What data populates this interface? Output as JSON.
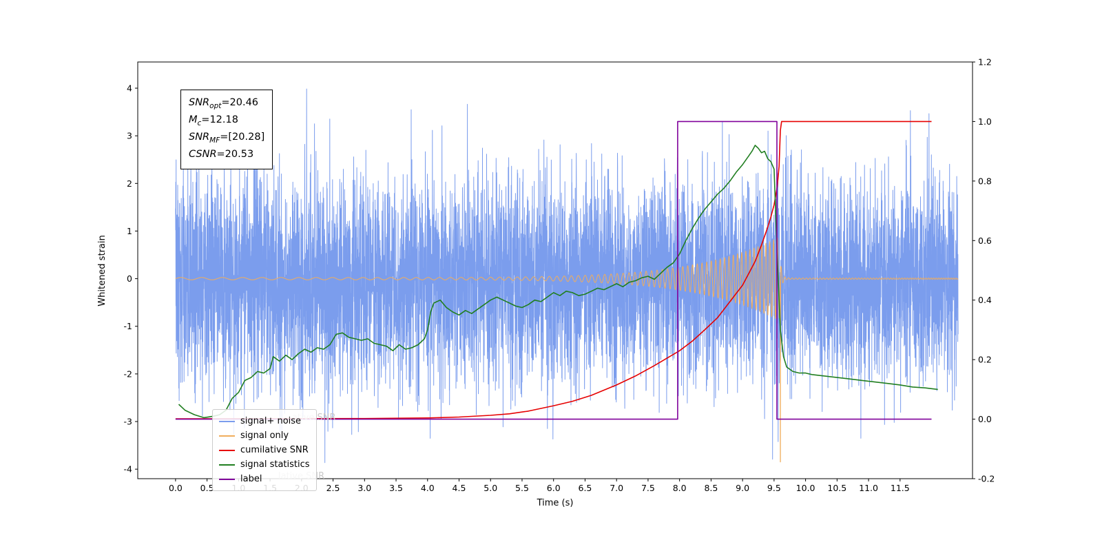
{
  "annotation": {
    "lines": [
      {
        "main": "SNR",
        "sub": "opt",
        "rest": "=20.46"
      },
      {
        "main": "M",
        "sub": "c",
        "rest": "=12.18"
      },
      {
        "main": "SNR",
        "sub": "MF",
        "rest": "=[20.28]"
      },
      {
        "main": "CSNR",
        "sub": "",
        "rest": "=20.53"
      }
    ]
  },
  "legend": {
    "items": [
      {
        "label": "signal+ noise",
        "color": "#7b9ded"
      },
      {
        "label": "signal only",
        "color": "#f0ad5c"
      },
      {
        "label": "cumilative SNR",
        "color": "#e60000"
      },
      {
        "label": "signal statistics",
        "color": "#207e20"
      },
      {
        "label": "label",
        "color": "#80009b"
      }
    ],
    "ghosts": [
      {
        "text": "ative SNR"
      },
      {
        "text": "lative SNR"
      }
    ]
  },
  "chart_data": {
    "type": "line",
    "title": "",
    "xlabel": "Time (s)",
    "ylabel_left": "Whitened strain",
    "ylabel_right": "",
    "xlim": [
      -0.6,
      12.65
    ],
    "ylim_left": [
      -4.2,
      4.55
    ],
    "ylim_right": [
      -0.2,
      1.2
    ],
    "grid": false,
    "legend_position": "lower left",
    "x_ticks": [
      0.0,
      0.5,
      1.0,
      1.5,
      2.0,
      2.5,
      3.0,
      3.5,
      4.0,
      4.5,
      5.0,
      5.5,
      6.0,
      6.5,
      7.0,
      7.5,
      8.0,
      8.5,
      9.0,
      9.5,
      10.0,
      10.5,
      11.0,
      11.5
    ],
    "y_ticks_left": [
      -4,
      -3,
      -2,
      -1,
      0,
      1,
      2,
      3,
      4
    ],
    "y_ticks_right": [
      -0.2,
      0.0,
      0.2,
      0.4,
      0.6,
      0.8,
      1.0,
      1.2
    ],
    "series": [
      {
        "name": "signal+ noise",
        "slug": "signal-plus-noise",
        "color": "#7b9ded",
        "axis": "left",
        "kind": "noise",
        "width": 1,
        "t_range": [
          0,
          12.42
        ],
        "noise": {
          "seed": 12,
          "n": 7200,
          "std": 1.05
        }
      },
      {
        "name": "signal only",
        "slug": "signal-only",
        "color": "#f0ad5c",
        "axis": "left",
        "kind": "chirp",
        "width": 1,
        "t_range": [
          0,
          12.42
        ],
        "chirp": {
          "t_merger": 9.58,
          "amp_floor": 0.025,
          "amp_peak": 0.85,
          "power": 7.5,
          "f0": 3.0,
          "cube": 0.05,
          "ring_decay": 40,
          "residual": 0.015,
          "spike_t": 9.6,
          "spike_amp": -3.85
        }
      },
      {
        "name": "cumilative SNR",
        "slug": "cumulative-snr",
        "color": "#e60000",
        "axis": "right",
        "kind": "points",
        "width": 1.6,
        "points": [
          [
            0,
            0.001
          ],
          [
            3,
            0.002
          ],
          [
            4,
            0.004
          ],
          [
            4.5,
            0.007
          ],
          [
            5,
            0.013
          ],
          [
            5.3,
            0.018
          ],
          [
            5.6,
            0.027
          ],
          [
            6,
            0.045
          ],
          [
            6.3,
            0.06
          ],
          [
            6.6,
            0.08
          ],
          [
            7,
            0.115
          ],
          [
            7.3,
            0.145
          ],
          [
            7.6,
            0.18
          ],
          [
            8,
            0.23
          ],
          [
            8.2,
            0.262
          ],
          [
            8.4,
            0.3
          ],
          [
            8.6,
            0.34
          ],
          [
            8.8,
            0.395
          ],
          [
            9,
            0.45
          ],
          [
            9.1,
            0.49
          ],
          [
            9.2,
            0.53
          ],
          [
            9.3,
            0.585
          ],
          [
            9.4,
            0.645
          ],
          [
            9.45,
            0.68
          ],
          [
            9.5,
            0.72
          ],
          [
            9.55,
            0.78
          ],
          [
            9.58,
            0.85
          ],
          [
            9.6,
            0.97
          ],
          [
            9.62,
            1.0
          ],
          [
            12.0,
            1.0
          ]
        ]
      },
      {
        "name": "signal statistics",
        "slug": "signal-statistics",
        "color": "#207e20",
        "axis": "right",
        "kind": "points",
        "width": 1.6,
        "points": [
          [
            0.05,
            0.05
          ],
          [
            0.15,
            0.03
          ],
          [
            0.3,
            0.015
          ],
          [
            0.45,
            0.005
          ],
          [
            0.6,
            0.01
          ],
          [
            0.7,
            0.015
          ],
          [
            0.8,
            0.03
          ],
          [
            0.9,
            0.07
          ],
          [
            1.0,
            0.09
          ],
          [
            1.1,
            0.13
          ],
          [
            1.2,
            0.14
          ],
          [
            1.3,
            0.16
          ],
          [
            1.4,
            0.155
          ],
          [
            1.5,
            0.17
          ],
          [
            1.55,
            0.21
          ],
          [
            1.65,
            0.195
          ],
          [
            1.75,
            0.215
          ],
          [
            1.85,
            0.2
          ],
          [
            1.95,
            0.22
          ],
          [
            2.05,
            0.235
          ],
          [
            2.15,
            0.225
          ],
          [
            2.25,
            0.24
          ],
          [
            2.35,
            0.235
          ],
          [
            2.45,
            0.25
          ],
          [
            2.55,
            0.285
          ],
          [
            2.65,
            0.29
          ],
          [
            2.75,
            0.275
          ],
          [
            2.85,
            0.27
          ],
          [
            2.95,
            0.265
          ],
          [
            3.05,
            0.27
          ],
          [
            3.15,
            0.255
          ],
          [
            3.25,
            0.25
          ],
          [
            3.35,
            0.245
          ],
          [
            3.45,
            0.23
          ],
          [
            3.55,
            0.25
          ],
          [
            3.65,
            0.235
          ],
          [
            3.75,
            0.24
          ],
          [
            3.85,
            0.25
          ],
          [
            3.95,
            0.27
          ],
          [
            4.0,
            0.3
          ],
          [
            4.05,
            0.36
          ],
          [
            4.1,
            0.39
          ],
          [
            4.2,
            0.4
          ],
          [
            4.3,
            0.375
          ],
          [
            4.4,
            0.36
          ],
          [
            4.5,
            0.35
          ],
          [
            4.6,
            0.365
          ],
          [
            4.7,
            0.355
          ],
          [
            4.8,
            0.37
          ],
          [
            4.9,
            0.385
          ],
          [
            5.0,
            0.4
          ],
          [
            5.1,
            0.41
          ],
          [
            5.2,
            0.4
          ],
          [
            5.3,
            0.39
          ],
          [
            5.4,
            0.38
          ],
          [
            5.5,
            0.375
          ],
          [
            5.6,
            0.385
          ],
          [
            5.7,
            0.4
          ],
          [
            5.8,
            0.395
          ],
          [
            5.9,
            0.41
          ],
          [
            6.0,
            0.425
          ],
          [
            6.1,
            0.415
          ],
          [
            6.2,
            0.43
          ],
          [
            6.3,
            0.425
          ],
          [
            6.4,
            0.415
          ],
          [
            6.5,
            0.42
          ],
          [
            6.6,
            0.43
          ],
          [
            6.7,
            0.44
          ],
          [
            6.8,
            0.435
          ],
          [
            6.9,
            0.445
          ],
          [
            7.0,
            0.455
          ],
          [
            7.1,
            0.445
          ],
          [
            7.2,
            0.46
          ],
          [
            7.3,
            0.465
          ],
          [
            7.4,
            0.475
          ],
          [
            7.5,
            0.48
          ],
          [
            7.6,
            0.47
          ],
          [
            7.7,
            0.49
          ],
          [
            7.8,
            0.51
          ],
          [
            7.9,
            0.525
          ],
          [
            8.0,
            0.555
          ],
          [
            8.1,
            0.6
          ],
          [
            8.2,
            0.64
          ],
          [
            8.3,
            0.675
          ],
          [
            8.4,
            0.705
          ],
          [
            8.5,
            0.73
          ],
          [
            8.6,
            0.755
          ],
          [
            8.7,
            0.775
          ],
          [
            8.8,
            0.8
          ],
          [
            8.9,
            0.83
          ],
          [
            9.0,
            0.855
          ],
          [
            9.05,
            0.87
          ],
          [
            9.1,
            0.885
          ],
          [
            9.15,
            0.9
          ],
          [
            9.2,
            0.92
          ],
          [
            9.25,
            0.91
          ],
          [
            9.3,
            0.895
          ],
          [
            9.35,
            0.9
          ],
          [
            9.4,
            0.875
          ],
          [
            9.45,
            0.865
          ],
          [
            9.5,
            0.84
          ],
          [
            9.55,
            0.55
          ],
          [
            9.6,
            0.3
          ],
          [
            9.65,
            0.21
          ],
          [
            9.7,
            0.175
          ],
          [
            9.8,
            0.16
          ],
          [
            9.9,
            0.155
          ],
          [
            10.0,
            0.155
          ],
          [
            10.1,
            0.15
          ],
          [
            10.3,
            0.145
          ],
          [
            10.5,
            0.14
          ],
          [
            10.7,
            0.135
          ],
          [
            10.9,
            0.13
          ],
          [
            11.1,
            0.125
          ],
          [
            11.3,
            0.12
          ],
          [
            11.5,
            0.115
          ],
          [
            11.7,
            0.108
          ],
          [
            11.9,
            0.105
          ],
          [
            12.1,
            0.1
          ]
        ]
      },
      {
        "name": "label",
        "slug": "label",
        "color": "#80009b",
        "axis": "right",
        "kind": "points",
        "width": 1.6,
        "points": [
          [
            0,
            0
          ],
          [
            7.97,
            0
          ],
          [
            7.97,
            1
          ],
          [
            9.545,
            1
          ],
          [
            9.545,
            0
          ],
          [
            12.0,
            0
          ]
        ]
      }
    ]
  }
}
